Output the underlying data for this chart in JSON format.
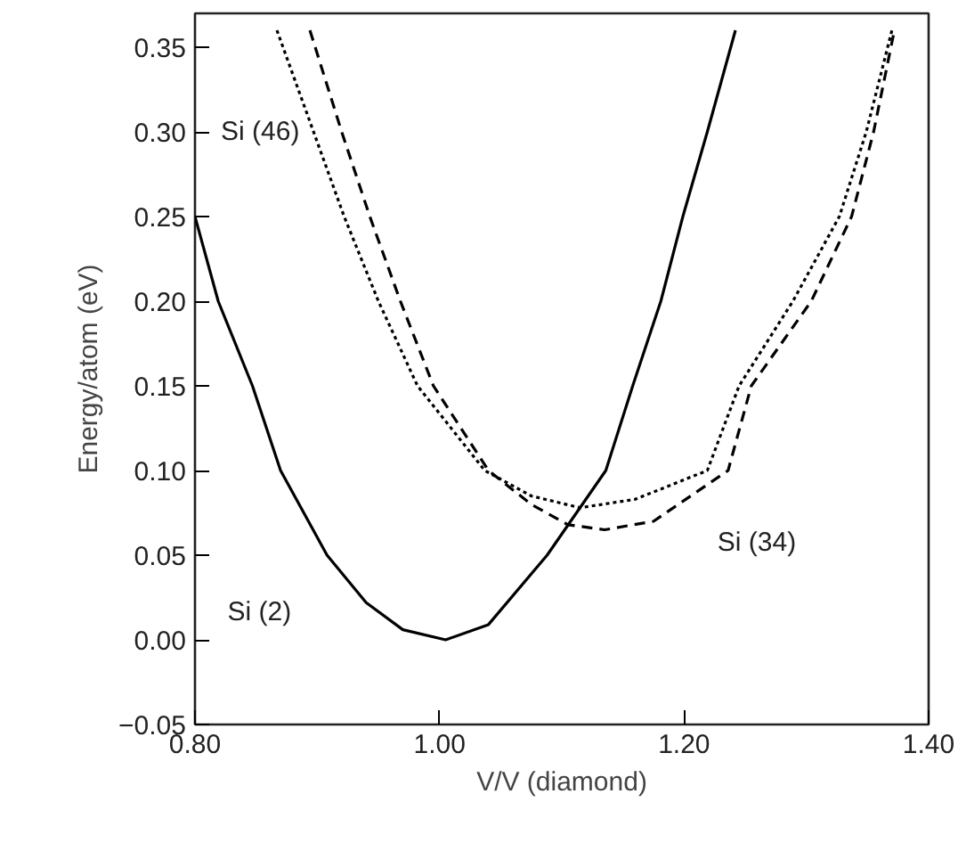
{
  "chart_data": {
    "type": "line",
    "xlabel": "V/V (diamond)",
    "ylabel": "Energy/atom (eV)",
    "xlim": [
      0.8,
      1.4
    ],
    "ylim": [
      -0.05,
      0.37
    ],
    "xticks": [
      {
        "value": 0.8,
        "label": "0.80"
      },
      {
        "value": 1.0,
        "label": "1.00"
      },
      {
        "value": 1.2,
        "label": "1.20"
      },
      {
        "value": 1.4,
        "label": "1.40"
      }
    ],
    "yticks": [
      {
        "value": -0.05,
        "label": "−0.05"
      },
      {
        "value": 0.0,
        "label": "0.00"
      },
      {
        "value": 0.05,
        "label": "0.05"
      },
      {
        "value": 0.1,
        "label": "0.10"
      },
      {
        "value": 0.15,
        "label": "0.15"
      },
      {
        "value": 0.2,
        "label": "0.20"
      },
      {
        "value": 0.25,
        "label": "0.25"
      },
      {
        "value": 0.3,
        "label": "0.30"
      },
      {
        "value": 0.35,
        "label": "0.35"
      }
    ],
    "grid": false,
    "marker": "none",
    "series": [
      {
        "name": "Si (2)",
        "color": "#000000",
        "line_style": "solid",
        "x": [
          0.8,
          0.819,
          0.847,
          0.87,
          0.908,
          0.94,
          0.97,
          1.005,
          1.04,
          1.088,
          1.136,
          1.158,
          1.181,
          1.199,
          1.219,
          1.242
        ],
        "values": [
          0.25,
          0.2,
          0.15,
          0.1,
          0.05,
          0.022,
          0.006,
          0.0,
          0.009,
          0.05,
          0.1,
          0.15,
          0.2,
          0.25,
          0.3,
          0.36
        ]
      },
      {
        "name": "Si (46)",
        "color": "#000000",
        "line_style": "dotted",
        "x": [
          0.867,
          0.897,
          0.922,
          0.95,
          0.982,
          1.037,
          1.075,
          1.115,
          1.16,
          1.219,
          1.245,
          1.289,
          1.327,
          1.349,
          1.37
        ],
        "values": [
          0.36,
          0.3,
          0.25,
          0.2,
          0.15,
          0.1,
          0.085,
          0.078,
          0.083,
          0.1,
          0.15,
          0.2,
          0.25,
          0.3,
          0.36
        ]
      },
      {
        "name": "Si (34)",
        "color": "#000000",
        "line_style": "dashed",
        "x": [
          0.894,
          0.92,
          0.943,
          0.968,
          0.995,
          1.04,
          1.075,
          1.105,
          1.135,
          1.175,
          1.236,
          1.255,
          1.304,
          1.337,
          1.355,
          1.372
        ],
        "values": [
          0.36,
          0.3,
          0.25,
          0.2,
          0.15,
          0.1,
          0.08,
          0.068,
          0.065,
          0.07,
          0.1,
          0.15,
          0.2,
          0.25,
          0.3,
          0.36
        ]
      }
    ]
  }
}
